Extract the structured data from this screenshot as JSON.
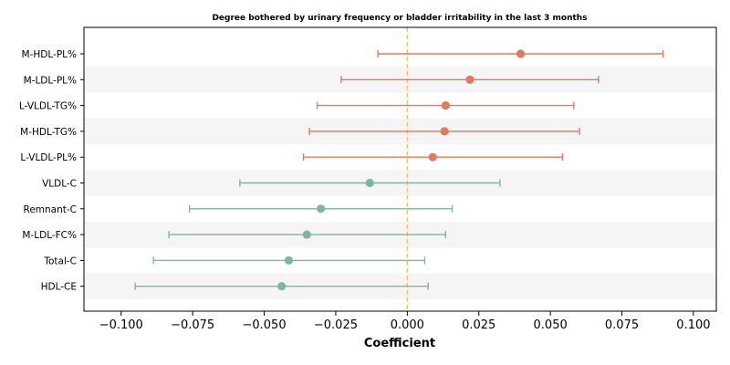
{
  "chart_data": {
    "type": "forest",
    "title": "Degree bothered by urinary frequency or bladder irritability in the last 3 months",
    "xlabel": "Coefficient",
    "ylabel": "",
    "xlim": [
      -0.113,
      0.108
    ],
    "xticks": [
      -0.1,
      -0.075,
      -0.05,
      -0.025,
      0.0,
      0.025,
      0.05,
      0.075,
      0.1
    ],
    "xtick_labels": [
      "−0.100",
      "−0.075",
      "−0.050",
      "−0.025",
      "0.000",
      "0.025",
      "0.050",
      "0.075",
      "0.100"
    ],
    "reference_line": 0.0,
    "grid": false,
    "colors": {
      "positive": "#E07B5F",
      "negative": "#7FB69D",
      "reference": "#F2C27A",
      "band": "#F5F5F5"
    },
    "rows": [
      {
        "label": "M-HDL-PL%",
        "coef": 0.0396,
        "lower": -0.0103,
        "upper": 0.0894,
        "sign": "positive"
      },
      {
        "label": "M-LDL-PL%",
        "coef": 0.0219,
        "lower": -0.0231,
        "upper": 0.0668,
        "sign": "positive"
      },
      {
        "label": "L-VLDL-TG%",
        "coef": 0.0134,
        "lower": -0.0315,
        "upper": 0.0582,
        "sign": "positive"
      },
      {
        "label": "M-HDL-TG%",
        "coef": 0.013,
        "lower": -0.0342,
        "upper": 0.0602,
        "sign": "positive"
      },
      {
        "label": "L-VLDL-PL%",
        "coef": 0.0089,
        "lower": -0.0363,
        "upper": 0.0542,
        "sign": "positive"
      },
      {
        "label": "VLDL-C",
        "coef": -0.0131,
        "lower": -0.0585,
        "upper": 0.0324,
        "sign": "negative"
      },
      {
        "label": "Remnant-C",
        "coef": -0.0302,
        "lower": -0.0761,
        "upper": 0.0157,
        "sign": "negative"
      },
      {
        "label": "M-LDL-FC%",
        "coef": -0.0351,
        "lower": -0.0833,
        "upper": 0.0134,
        "sign": "negative"
      },
      {
        "label": "Total-C",
        "coef": -0.0414,
        "lower": -0.0887,
        "upper": 0.0061,
        "sign": "negative"
      },
      {
        "label": "HDL-CE",
        "coef": -0.0439,
        "lower": -0.0951,
        "upper": 0.0073,
        "sign": "negative"
      }
    ]
  }
}
